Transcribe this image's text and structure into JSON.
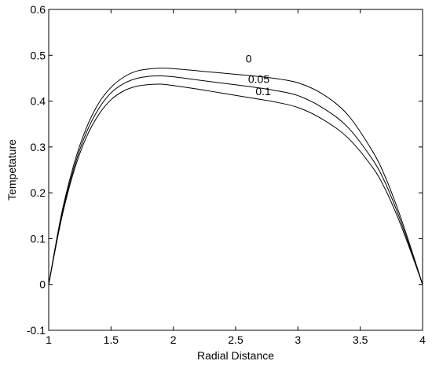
{
  "chart_data": {
    "type": "line",
    "title": "",
    "xlabel": "Radial Distance",
    "ylabel": "Tempetature",
    "xlim": [
      1,
      4
    ],
    "ylim": [
      -0.1,
      0.6
    ],
    "xticks": [
      "1",
      "1.5",
      "2",
      "2.5",
      "3",
      "3.5",
      "4"
    ],
    "yticks": [
      "-0.1",
      "0",
      "0.1",
      "0.2",
      "0.3",
      "0.4",
      "0.5",
      "0.6"
    ],
    "grid": false,
    "legend": "none",
    "line_color": "#000000",
    "series": [
      {
        "name": "0",
        "x": [
          1.0,
          1.1,
          1.2,
          1.3,
          1.4,
          1.5,
          1.6,
          1.7,
          1.8,
          1.9,
          2.0,
          2.2,
          2.4,
          2.6,
          2.8,
          3.0,
          3.2,
          3.4,
          3.6,
          3.7,
          3.8,
          3.9,
          4.0
        ],
        "y": [
          0.0,
          0.15,
          0.26,
          0.34,
          0.395,
          0.43,
          0.452,
          0.465,
          0.47,
          0.472,
          0.471,
          0.466,
          0.461,
          0.456,
          0.45,
          0.44,
          0.415,
          0.37,
          0.29,
          0.235,
          0.165,
          0.085,
          0.0
        ],
        "label": {
          "x": 2.58,
          "y": 0.484,
          "text": "0"
        }
      },
      {
        "name": "0.05",
        "x": [
          1.0,
          1.1,
          1.2,
          1.3,
          1.4,
          1.5,
          1.6,
          1.7,
          1.8,
          1.9,
          2.0,
          2.2,
          2.4,
          2.6,
          2.8,
          3.0,
          3.2,
          3.4,
          3.6,
          3.7,
          3.8,
          3.9,
          4.0
        ],
        "y": [
          0.0,
          0.145,
          0.252,
          0.33,
          0.383,
          0.418,
          0.438,
          0.449,
          0.454,
          0.455,
          0.453,
          0.446,
          0.439,
          0.432,
          0.424,
          0.412,
          0.385,
          0.343,
          0.272,
          0.222,
          0.156,
          0.08,
          0.0
        ],
        "label": {
          "x": 2.6,
          "y": 0.44,
          "text": "0.05"
        }
      },
      {
        "name": "0.1",
        "x": [
          1.0,
          1.1,
          1.2,
          1.3,
          1.4,
          1.5,
          1.6,
          1.7,
          1.8,
          1.9,
          2.0,
          2.2,
          2.4,
          2.6,
          2.8,
          3.0,
          3.2,
          3.4,
          3.6,
          3.7,
          3.8,
          3.9,
          4.0
        ],
        "y": [
          0.0,
          0.14,
          0.245,
          0.32,
          0.37,
          0.403,
          0.422,
          0.432,
          0.436,
          0.437,
          0.434,
          0.426,
          0.417,
          0.408,
          0.399,
          0.386,
          0.36,
          0.32,
          0.255,
          0.208,
          0.147,
          0.076,
          0.0
        ],
        "label": {
          "x": 2.66,
          "y": 0.413,
          "text": "0.1"
        }
      }
    ]
  }
}
